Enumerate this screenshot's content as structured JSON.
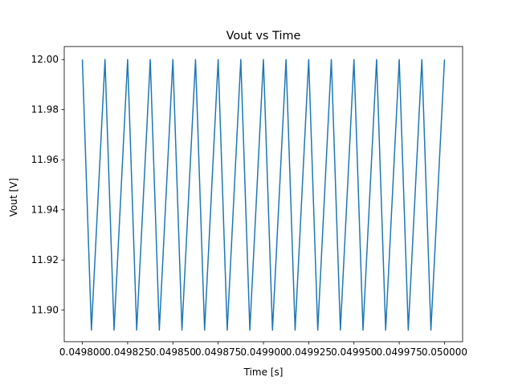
{
  "chart_data": {
    "type": "line",
    "title": "Vout vs Time",
    "xlabel": "Time [s]",
    "ylabel": "Vout [V]",
    "xlim": [
      0.04979,
      0.05001
    ],
    "ylim": [
      11.8874,
      12.0052
    ],
    "grid": false,
    "x_ticks": [
      0.0498,
      0.049825,
      0.04985,
      0.049875,
      0.0499,
      0.049925,
      0.04995,
      0.049975,
      0.05
    ],
    "x_tick_labels": [
      "0.049800",
      "0.049825",
      "0.049850",
      "0.049875",
      "0.049900",
      "0.049925",
      "0.049950",
      "0.049975",
      "0.050000"
    ],
    "y_ticks": [
      11.9,
      11.92,
      11.94,
      11.96,
      11.98,
      12.0
    ],
    "y_tick_labels": [
      "11.90",
      "11.92",
      "11.94",
      "11.96",
      "11.98",
      "12.00"
    ],
    "series": [
      {
        "color": "#1f77b4",
        "x": [
          0.0498,
          0.049805,
          0.0498125,
          0.0498175,
          0.049825,
          0.04983,
          0.0498375,
          0.0498425,
          0.04985,
          0.049855,
          0.0498625,
          0.0498675,
          0.049875,
          0.04988,
          0.0498875,
          0.0498925,
          0.0499,
          0.049905,
          0.0499125,
          0.0499175,
          0.049925,
          0.04993,
          0.0499375,
          0.0499425,
          0.04995,
          0.049955,
          0.0499625,
          0.0499675,
          0.049975,
          0.04998,
          0.0499875,
          0.0499925,
          0.05
        ],
        "y": [
          12.0,
          11.892,
          12.0,
          11.892,
          12.0,
          11.892,
          12.0,
          11.892,
          12.0,
          11.892,
          12.0,
          11.892,
          12.0,
          11.892,
          12.0,
          11.892,
          12.0,
          11.892,
          12.0,
          11.892,
          12.0,
          11.892,
          12.0,
          11.892,
          12.0,
          11.892,
          12.0,
          11.892,
          12.0,
          11.892,
          12.0,
          11.892,
          12.0
        ]
      }
    ]
  }
}
